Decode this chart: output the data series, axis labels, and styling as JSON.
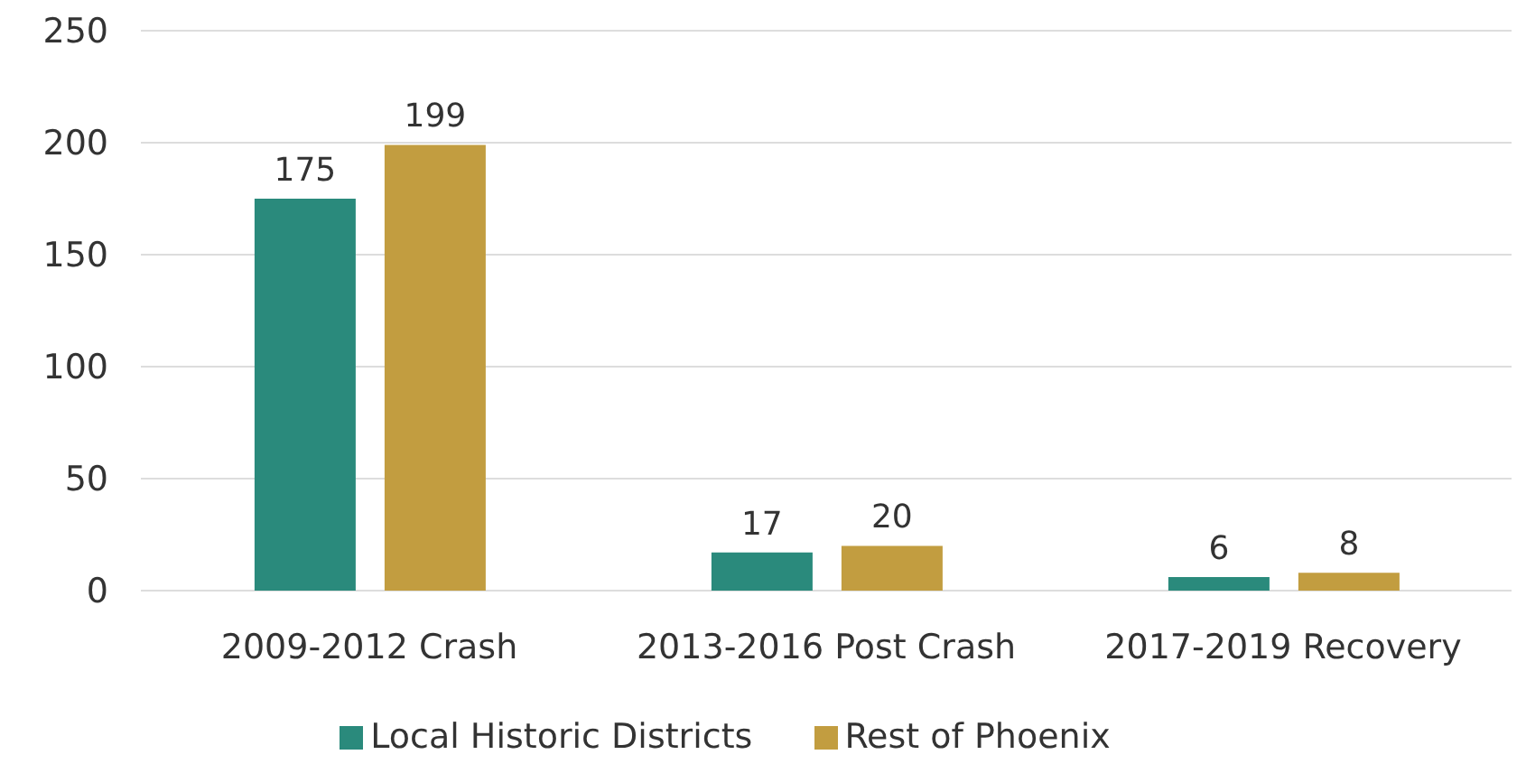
{
  "chart_data": {
    "type": "bar",
    "categories": [
      "2009-2012 Crash",
      "2013-2016 Post Crash",
      "2017-2019 Recovery"
    ],
    "series": [
      {
        "name": "Local Historic Districts",
        "color": "#2a8a7c",
        "values": [
          175,
          17,
          6
        ]
      },
      {
        "name": "Rest of Phoenix",
        "color": "#c29d40",
        "values": [
          199,
          20,
          8
        ]
      }
    ],
    "ylim": [
      0,
      250
    ],
    "yticks": [
      0,
      50,
      100,
      150,
      200,
      250
    ],
    "grid": "y",
    "legend": "bottom",
    "data_labels": true
  }
}
